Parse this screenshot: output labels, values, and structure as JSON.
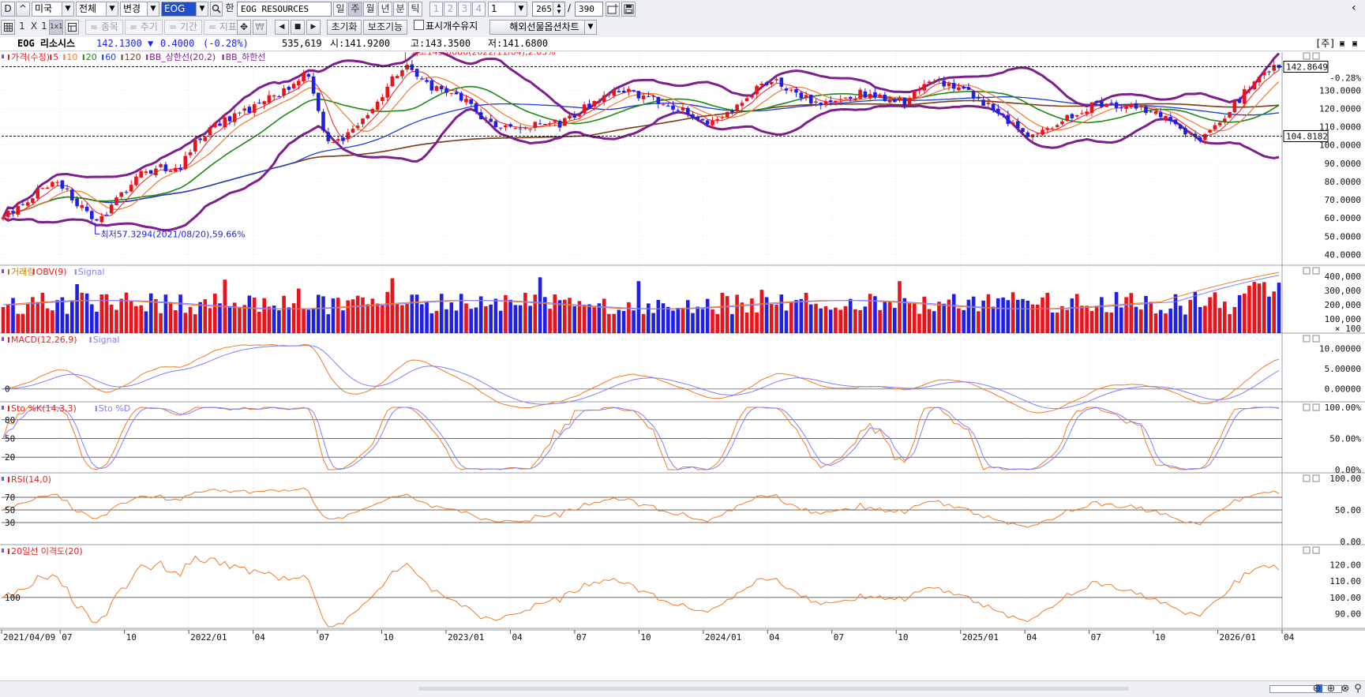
{
  "toolbar": {
    "btn_d": "D",
    "btn_up": "^",
    "market": "미국",
    "scope": "전체",
    "change": "변경",
    "ticker": "EOG",
    "han": "한",
    "name": "EOG RESOURCES",
    "periods": [
      "일",
      "주",
      "월",
      "년",
      "분",
      "틱"
    ],
    "period_active": "주",
    "counts": [
      "1",
      "2",
      "3",
      "4"
    ],
    "interval": "1",
    "visible_bars": "265",
    "slash": "/",
    "total_bars": "390"
  },
  "toolbar2": {
    "layouts": [
      "1",
      "X",
      "1",
      "1x1"
    ],
    "ghosts": [
      "= 종목",
      "= 주기",
      "= 기간",
      "= 지표"
    ],
    "reset": "초기화",
    "assist": "보조기능",
    "keep_label": "표시개수유지",
    "futures": "해외선물옵션차트"
  },
  "info": {
    "name": "EOG 리소시스",
    "price": "142.1300",
    "change_arrow": "▼",
    "change": "0.4000",
    "change_pct": "(-0.28%)",
    "volume": "535,619",
    "open": "시:141.9200",
    "high": "고:143.3500",
    "low": "저:141.6800",
    "corner": "[주]"
  },
  "colors": {
    "up": "#e8141c",
    "down": "#1f1fe8",
    "ma5": "#e82020",
    "ma10": "#f07b2a",
    "ma20": "#1a8a1a",
    "ma60": "#1a3ad8",
    "ma120": "#7a3a12",
    "bb": "#7e1f8e",
    "orange": "#f07b2a",
    "blueline": "#7f7fff",
    "vol_down": "#1f1fe8",
    "vol_up": "#e8141c"
  },
  "legends": {
    "price": [
      {
        "text": "가격(수정)",
        "color": "#e82020"
      },
      {
        "text": "5",
        "color": "#e82020"
      },
      {
        "text": "10",
        "color": "#f07b2a"
      },
      {
        "text": "20",
        "color": "#1a8a1a"
      },
      {
        "text": "60",
        "color": "#1a3ad8"
      },
      {
        "text": "120",
        "color": "#7a3a12"
      },
      {
        "text": "BB_상한선(20,2)",
        "color": "#7e1f8e"
      },
      {
        "text": "BB_하한선",
        "color": "#7e1f8e"
      }
    ],
    "volume": [
      {
        "text": "거래량",
        "color": "#b8860b"
      },
      {
        "text": "OBV(9)",
        "color": "#e82020"
      },
      {
        "text": "Signal",
        "color": "#7f7fff"
      }
    ],
    "macd": [
      {
        "text": "MACD(12,26,9)",
        "color": "#e82020"
      },
      {
        "text": "Signal",
        "color": "#7f7fff"
      }
    ],
    "sto": [
      {
        "text": "Sto %K(14,3,3)",
        "color": "#e82020"
      },
      {
        "text": "Sto %D",
        "color": "#7f7fff"
      }
    ],
    "rsi": [
      {
        "text": "RSI(14,0)",
        "color": "#e82020"
      }
    ],
    "disp": [
      {
        "text": "20일선 이격도(20)",
        "color": "#e82020"
      }
    ]
  },
  "annotations": {
    "high": "최고145.8686(2022/11/04),2.63%",
    "low": "최저57.3294(2021/08/20),59.66%",
    "current_tag": "142.8649",
    "current_pct": "-0.28%",
    "ref_tag": "104.8182"
  },
  "axes": {
    "price_ticks": [
      "130.0000",
      "120.0000",
      "110.0000",
      "100.0000",
      "90.0000",
      "80.0000",
      "70.0000",
      "60.0000",
      "50.0000",
      "40.0000"
    ],
    "price_tick_values": [
      130,
      120,
      110,
      100,
      90,
      80,
      70,
      60,
      50,
      40
    ],
    "volume_ticks": [
      "400,000",
      "300,000",
      "200,000",
      "100,000",
      "× 100"
    ],
    "macd_ticks": [
      "10.00000",
      "5.00000",
      "0.00000"
    ],
    "macd_left": "0",
    "sto_ticks": [
      "100.00%",
      "50.00%",
      "0.00%"
    ],
    "sto_left": [
      "80",
      "50",
      "20"
    ],
    "rsi_ticks": [
      "100.00",
      "50.00",
      "0.00"
    ],
    "rsi_left": [
      "70",
      "50",
      "30"
    ],
    "disp_ticks": [
      "120.00",
      "110.00",
      "100.00",
      "90.00"
    ],
    "disp_left": "100",
    "x_labels": [
      "2021/04/09",
      "07",
      "10",
      "2022/01",
      "04",
      "07",
      "10",
      "2023/01",
      "04",
      "07",
      "10",
      "2024/01",
      "04",
      "07",
      "10",
      "2025/01",
      "04",
      "07",
      "10",
      "2026/01",
      "04"
    ]
  },
  "chart_data": {
    "type": "candlestick",
    "interval": "weekly",
    "title": "EOG 리소시스",
    "ylim": [
      35,
      150
    ],
    "anchors": [
      {
        "date": "2021/04/09",
        "close": 62
      },
      {
        "date": "2021/05",
        "close": 70
      },
      {
        "date": "2021/06",
        "close": 80
      },
      {
        "date": "2021/07",
        "close": 72
      },
      {
        "date": "2021/08/20",
        "close": 57.33
      },
      {
        "date": "2021/10",
        "close": 82
      },
      {
        "date": "2021/11",
        "close": 88
      },
      {
        "date": "2021/12",
        "close": 86
      },
      {
        "date": "2022/01",
        "close": 105
      },
      {
        "date": "2022/03",
        "close": 118
      },
      {
        "date": "2022/05",
        "close": 130
      },
      {
        "date": "2022/06",
        "close": 140
      },
      {
        "date": "2022/07",
        "close": 100
      },
      {
        "date": "2022/08",
        "close": 105
      },
      {
        "date": "2022/09",
        "close": 118
      },
      {
        "date": "2022/11/04",
        "close": 145.87
      },
      {
        "date": "2022/12",
        "close": 130
      },
      {
        "date": "2023/01",
        "close": 128
      },
      {
        "date": "2023/03",
        "close": 108
      },
      {
        "date": "2023/05",
        "close": 112
      },
      {
        "date": "2023/06",
        "close": 112
      },
      {
        "date": "2023/08",
        "close": 128
      },
      {
        "date": "2023/09",
        "close": 130
      },
      {
        "date": "2023/11",
        "close": 122
      },
      {
        "date": "2024/01",
        "close": 112
      },
      {
        "date": "2024/03",
        "close": 130
      },
      {
        "date": "2024/04",
        "close": 134
      },
      {
        "date": "2024/06",
        "close": 123
      },
      {
        "date": "2024/08",
        "close": 128
      },
      {
        "date": "2024/10",
        "close": 124
      },
      {
        "date": "2024/11",
        "close": 136
      },
      {
        "date": "2025/01",
        "close": 128
      },
      {
        "date": "2025/04",
        "close": 105
      },
      {
        "date": "2025/05",
        "close": 112
      },
      {
        "date": "2025/07",
        "close": 123
      },
      {
        "date": "2025/09",
        "close": 122
      },
      {
        "date": "2025/11",
        "close": 108
      },
      {
        "date": "2025/12",
        "close": 104
      },
      {
        "date": "2026/01",
        "close": 115
      },
      {
        "date": "2026/02",
        "close": 130
      },
      {
        "date": "2026/03",
        "close": 142.13
      }
    ],
    "annot_high": {
      "date": "2022/11/04",
      "value": 145.8686
    },
    "annot_low": {
      "date": "2021/08/20",
      "value": 57.3294
    },
    "current": 142.8649,
    "reference_line": 104.8182
  }
}
